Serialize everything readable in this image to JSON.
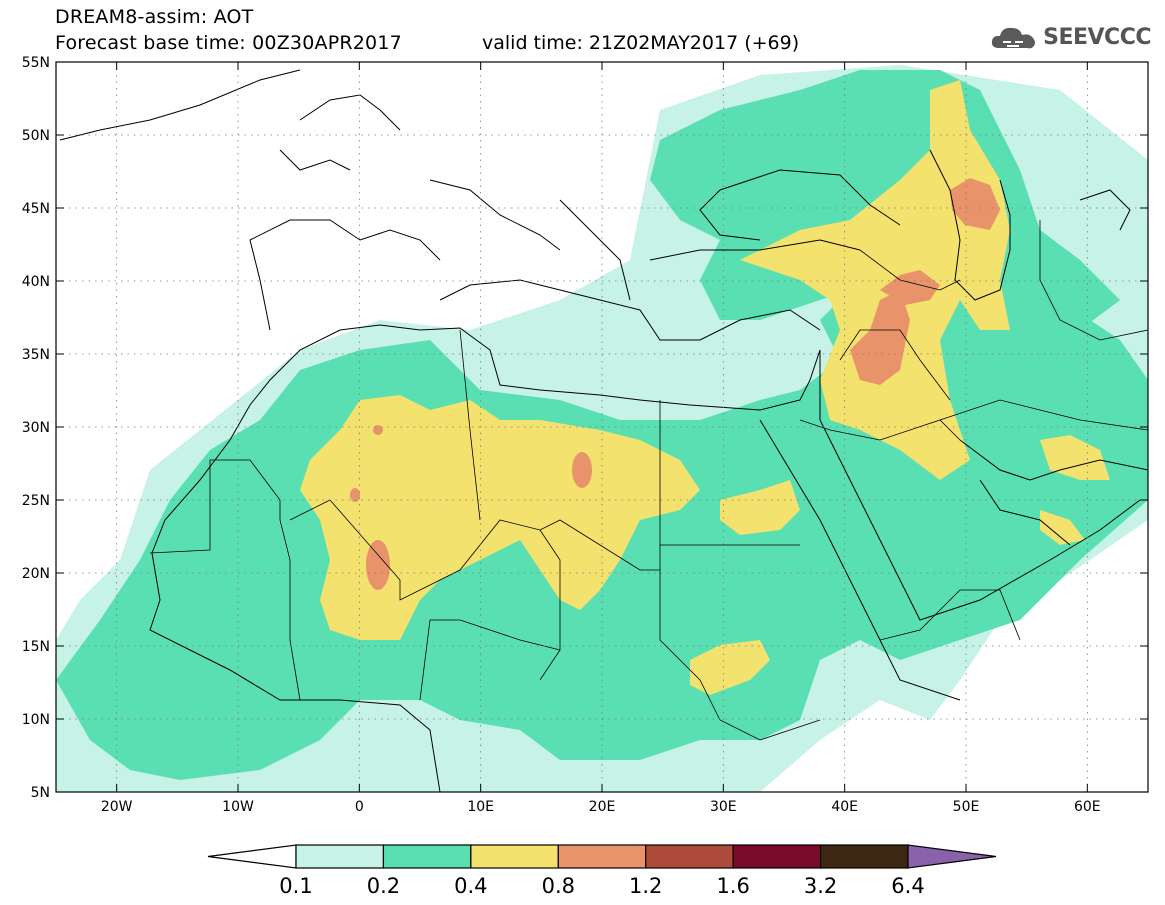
{
  "header": {
    "title": "DREAM8-assim: AOT",
    "base_time": "Forecast base time: 00Z30APR2017",
    "valid_time": "valid time: 21Z02MAY2017 (+69)",
    "logo_text": "SEEVCCC",
    "logo_icon": "cloud-icon"
  },
  "map": {
    "lon_range": [
      -25,
      65
    ],
    "lat_range": [
      5,
      55
    ],
    "lon_ticks": [
      "20W",
      "10W",
      "0",
      "10E",
      "20E",
      "30E",
      "40E",
      "50E",
      "60E"
    ],
    "lat_ticks": [
      "55N",
      "50N",
      "45N",
      "40N",
      "35N",
      "30N",
      "25N",
      "20N",
      "15N",
      "10N",
      "5N"
    ],
    "grid": "dotted",
    "variable": "AOT"
  },
  "colorbar": {
    "labels": [
      "0.1",
      "0.2",
      "0.4",
      "0.8",
      "1.2",
      "1.6",
      "3.2",
      "6.4"
    ],
    "colors": [
      "#ffffff",
      "#c6f2e8",
      "#5adfb3",
      "#f3e26e",
      "#e9936a",
      "#ad4a3b",
      "#7a0b2a",
      "#3e2712",
      "#8a62a9"
    ]
  },
  "chart_data": {
    "type": "heatmap",
    "title": "DREAM8-assim: AOT",
    "levels": [
      0.1,
      0.2,
      0.4,
      0.8,
      1.2,
      1.6,
      3.2,
      6.4
    ],
    "x": [
      "20W",
      "10W",
      "0",
      "10E",
      "20E",
      "30E",
      "40E",
      "50E",
      "60E"
    ],
    "y": [
      "55N",
      "50N",
      "45N",
      "40N",
      "35N",
      "30N",
      "25N",
      "20N",
      "15N",
      "10N",
      "5N"
    ],
    "xlim": [
      -25,
      65
    ],
    "ylim": [
      5,
      55
    ]
  }
}
